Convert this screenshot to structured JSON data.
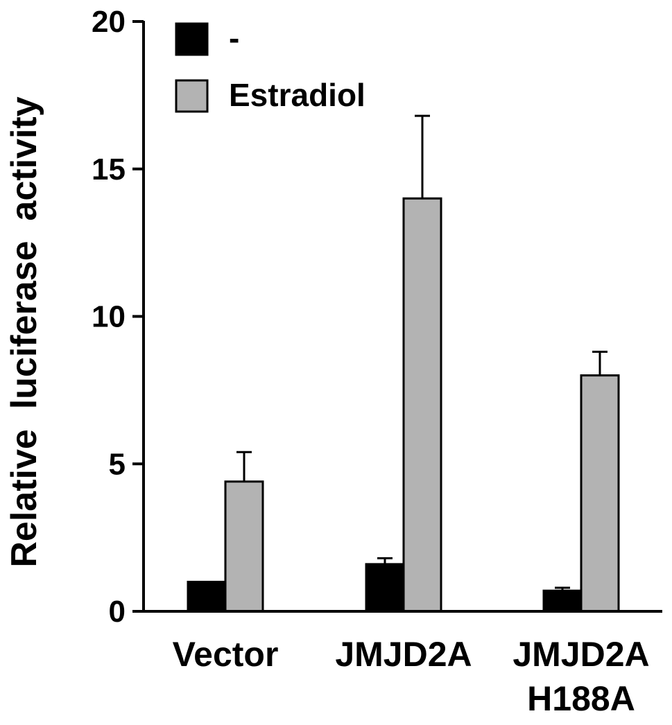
{
  "chart_data": {
    "type": "bar",
    "categories": [
      [
        "Vector"
      ],
      [
        "JMJD2A"
      ],
      [
        "JMJD2A",
        "H188A"
      ]
    ],
    "series": [
      {
        "name": "-",
        "color": "#000000",
        "values": [
          1.0,
          1.6,
          0.7
        ],
        "errors": [
          0.0,
          0.2,
          0.1
        ]
      },
      {
        "name": "Estradiol",
        "color": "#b3b3b3",
        "values": [
          4.4,
          14.0,
          8.0
        ],
        "errors": [
          1.0,
          2.8,
          0.8
        ]
      }
    ],
    "ylabel": "Relative  luciferase  activity",
    "ylim": [
      0,
      20
    ],
    "yticks": [
      "0",
      "5",
      "10",
      "15",
      "20"
    ],
    "legend_position": "top-left",
    "grid": false
  }
}
